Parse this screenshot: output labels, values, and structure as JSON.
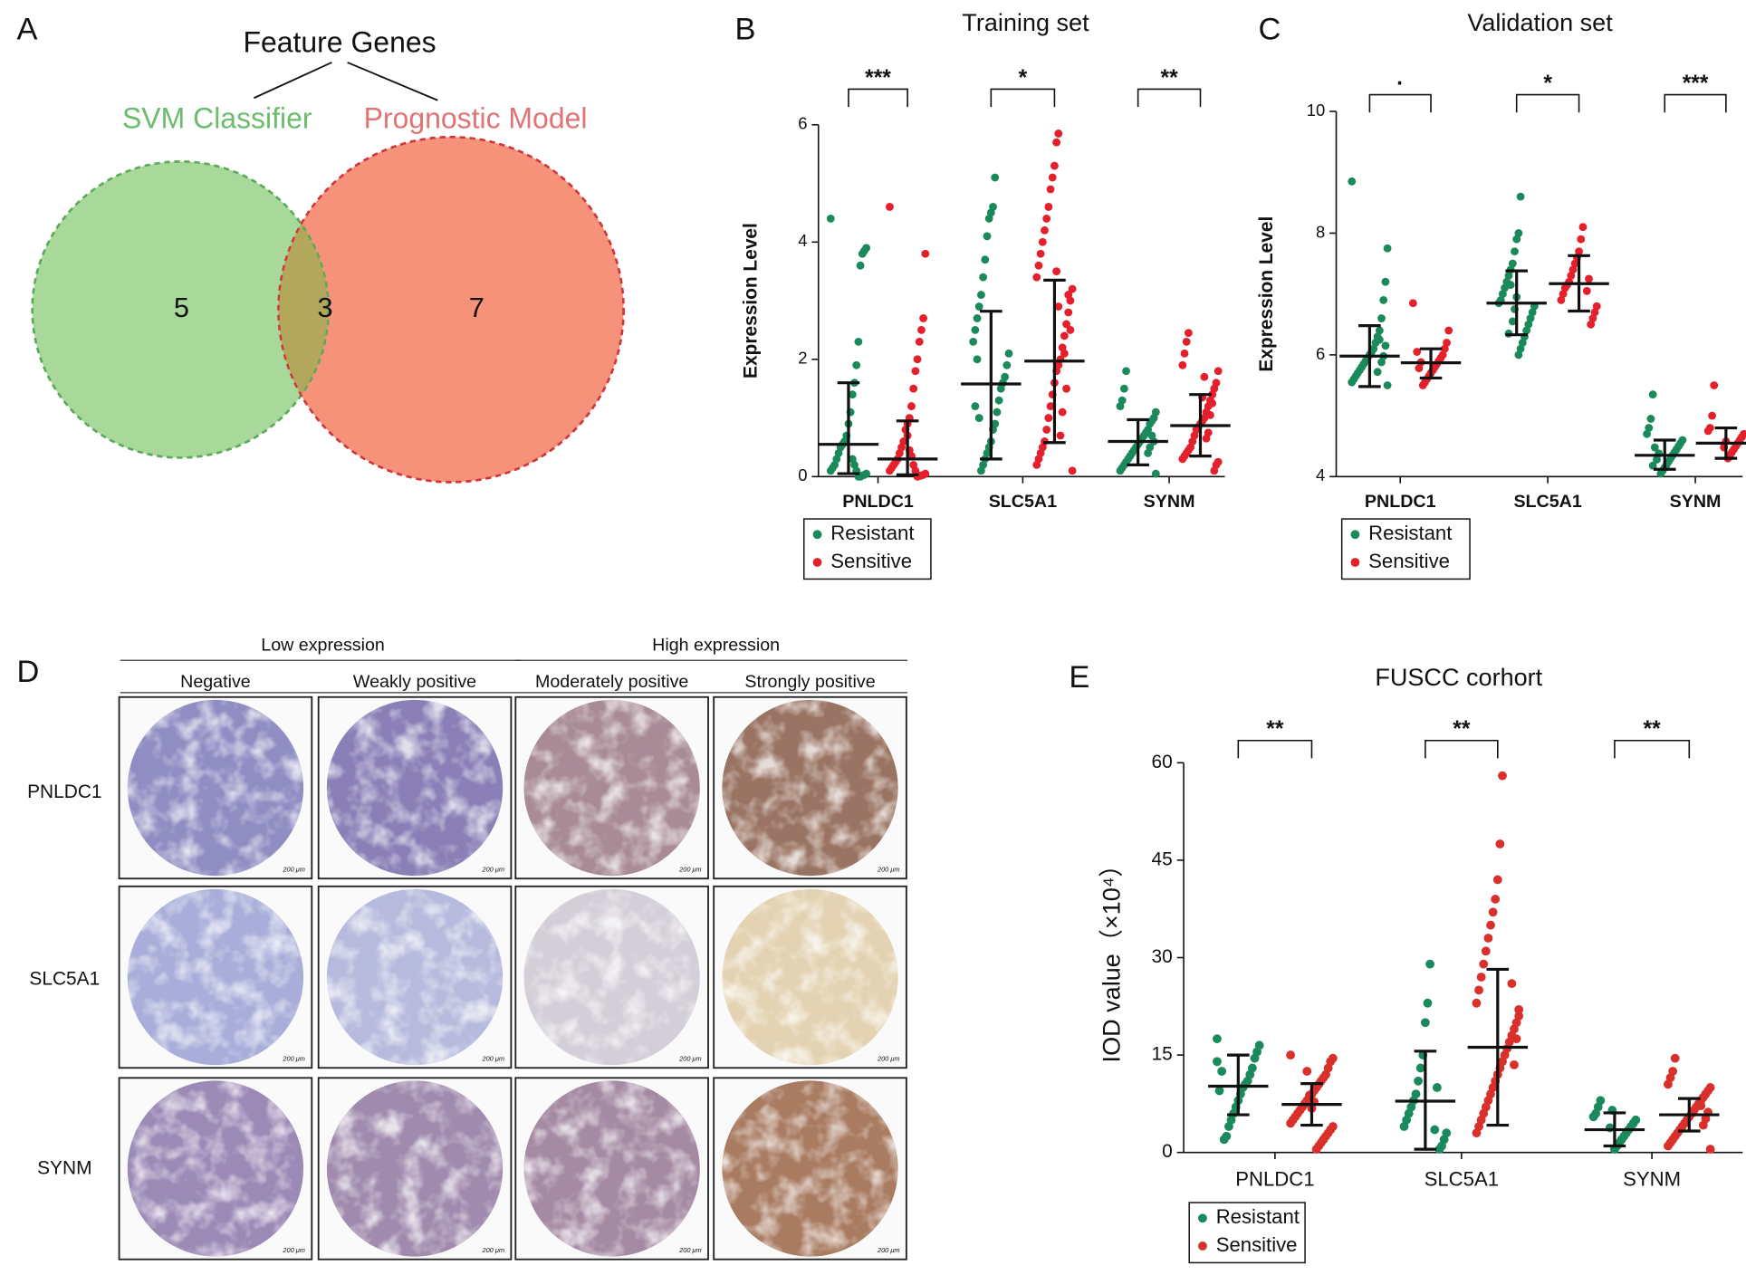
{
  "chart_data": [
    {
      "type": "venn",
      "label": "A",
      "title": "Feature Genes",
      "sets": [
        {
          "name": "SVM Classifier",
          "color": "#a8d99b"
        },
        {
          "name": "Prognostic Model",
          "color": "#f6927a"
        }
      ],
      "overlap_color": "#b3a75c",
      "values": [
        5,
        3,
        7
      ]
    },
    {
      "type": "dotplot",
      "label": "B",
      "title": "Training set",
      "ylabel": "Expression Level",
      "categories": [
        "PNLDC1",
        "SLC5A1",
        "SYNM"
      ],
      "annotations": [
        "***",
        "*",
        "**"
      ],
      "ylim": [
        0,
        6
      ],
      "yticks": [
        0,
        2,
        4,
        6
      ],
      "series": [
        {
          "name": "Resistant",
          "color": "#1b8a5a",
          "values": [
            [
              4.4,
              3.9,
              3.85,
              3.8,
              3.6,
              2.3,
              1.9,
              1.6,
              1.4,
              1.1,
              0.9,
              0.7,
              0.6,
              0.55,
              0.5,
              0.4,
              0.3,
              0.2,
              0.15,
              0.1,
              0.05,
              0.03,
              0.02,
              0.0,
              0.0,
              0.1,
              0.2,
              0.3
            ],
            [
              5.1,
              4.6,
              4.5,
              4.4,
              4.1,
              3.7,
              3.4,
              3.1,
              2.9,
              2.7,
              2.5,
              2.3,
              2.1,
              1.9,
              1.7,
              1.6,
              1.5,
              1.3,
              1.1,
              0.9,
              0.8,
              0.6,
              0.5,
              0.4,
              0.3,
              0.2,
              0.1,
              1.0,
              2.0,
              1.2
            ],
            [
              1.8,
              1.5,
              1.3,
              1.2,
              1.1,
              1.0,
              0.95,
              0.9,
              0.8,
              0.75,
              0.7,
              0.65,
              0.6,
              0.55,
              0.5,
              0.45,
              0.4,
              0.35,
              0.3,
              0.25,
              0.2,
              0.15,
              0.1,
              0.05,
              0.6,
              0.7,
              0.5,
              0.4
            ]
          ],
          "center": [
            0.55,
            1.58,
            0.6
          ],
          "lower": [
            0.05,
            0.3,
            0.2
          ],
          "upper": [
            1.6,
            2.82,
            0.97
          ]
        },
        {
          "name": "Sensitive",
          "color": "#e4202c",
          "values": [
            [
              4.6,
              3.8,
              2.7,
              2.5,
              2.3,
              2.0,
              1.8,
              1.5,
              1.2,
              1.0,
              0.9,
              0.8,
              0.6,
              0.5,
              0.4,
              0.3,
              0.25,
              0.2,
              0.15,
              0.1,
              0.05,
              0.03,
              0.02,
              0.01,
              0.0,
              0.1,
              0.2,
              0.35,
              0.45,
              0.7
            ],
            [
              5.85,
              5.7,
              5.3,
              5.1,
              4.9,
              4.6,
              4.4,
              4.2,
              4.0,
              3.8,
              3.6,
              3.4,
              3.2,
              3.0,
              2.8,
              2.6,
              2.4,
              2.2,
              2.0,
              1.9,
              1.8,
              1.6,
              1.4,
              1.2,
              1.0,
              0.8,
              0.6,
              0.5,
              0.4,
              0.3,
              0.2,
              0.1,
              2.5,
              3.1,
              1.5,
              2.1,
              1.1,
              0.7,
              2.9,
              3.5
            ],
            [
              2.45,
              2.3,
              2.1,
              1.9,
              1.8,
              1.6,
              1.5,
              1.4,
              1.3,
              1.2,
              1.1,
              1.0,
              0.95,
              0.9,
              0.85,
              0.8,
              0.7,
              0.6,
              0.5,
              0.45,
              0.4,
              0.35,
              0.3,
              0.25,
              0.2,
              0.1,
              1.25,
              1.05,
              0.75,
              0.65,
              1.7,
              1.35
            ]
          ],
          "center": [
            0.3,
            1.97,
            0.87
          ],
          "lower": [
            0.03,
            0.58,
            0.35
          ],
          "upper": [
            0.95,
            3.35,
            1.4
          ]
        }
      ]
    },
    {
      "type": "dotplot",
      "label": "C",
      "title": "Validation set",
      "ylabel": "Expression Level",
      "categories": [
        "PNLDC1",
        "SLC5A1",
        "SYNM"
      ],
      "annotations": [
        "·",
        "*",
        "***"
      ],
      "ylim": [
        4,
        10
      ],
      "yticks": [
        4,
        6,
        8,
        10
      ],
      "series": [
        {
          "name": "Resistant",
          "color": "#1b8a5a",
          "values": [
            [
              8.85,
              7.75,
              7.2,
              6.9,
              6.6,
              6.4,
              6.3,
              6.2,
              6.1,
              6.05,
              6.0,
              5.95,
              5.9,
              5.85,
              5.8,
              5.75,
              5.7,
              5.65,
              5.6,
              5.55,
              5.5,
              6.15,
              5.98,
              5.88,
              6.25,
              5.72
            ],
            [
              8.6,
              8.0,
              7.9,
              7.7,
              7.5,
              7.4,
              7.3,
              7.2,
              7.1,
              7.0,
              6.9,
              6.85,
              6.8,
              6.7,
              6.6,
              6.5,
              6.4,
              6.3,
              6.2,
              6.1,
              6.0,
              6.95,
              6.75,
              6.55,
              7.15,
              6.35
            ],
            [
              5.35,
              4.95,
              4.8,
              4.7,
              4.6,
              4.55,
              4.5,
              4.45,
              4.4,
              4.35,
              4.3,
              4.25,
              4.2,
              4.15,
              4.1,
              4.05,
              4.38,
              4.28,
              4.48,
              4.18
            ]
          ],
          "center": [
            5.98,
            6.85,
            4.35
          ],
          "lower": [
            5.48,
            6.33,
            4.12
          ],
          "upper": [
            6.48,
            7.38,
            4.6
          ]
        },
        {
          "name": "Sensitive",
          "color": "#e4202c",
          "values": [
            [
              6.85,
              6.4,
              6.2,
              6.1,
              6.0,
              5.95,
              5.9,
              5.85,
              5.8,
              5.75,
              5.7,
              5.65,
              5.6,
              5.55,
              5.5,
              5.88,
              5.78,
              6.05
            ],
            [
              8.1,
              7.9,
              7.7,
              7.6,
              7.5,
              7.4,
              7.3,
              7.2,
              7.15,
              7.1,
              7.0,
              6.9,
              6.8,
              6.7,
              6.6,
              6.5,
              7.25,
              7.05
            ],
            [
              5.5,
              5.0,
              4.8,
              4.75,
              4.7,
              4.65,
              4.6,
              4.55,
              4.5,
              4.45,
              4.4,
              4.35,
              4.3,
              4.58,
              4.48
            ]
          ],
          "center": [
            5.87,
            7.17,
            4.55
          ],
          "lower": [
            5.62,
            6.72,
            4.3
          ],
          "upper": [
            6.1,
            7.63,
            4.8
          ]
        }
      ]
    },
    {
      "type": "dotplot",
      "label": "E",
      "title": "FUSCC corhort",
      "ylabel": "IOD value（×10⁴）",
      "categories": [
        "PNLDC1",
        "SLC5A1",
        "SYNM"
      ],
      "annotations": [
        "**",
        "**",
        "**"
      ],
      "ylim": [
        0,
        60
      ],
      "yticks": [
        0,
        15,
        30,
        45,
        60
      ],
      "series": [
        {
          "name": "Resistant",
          "color": "#1a8a5c",
          "values": [
            [
              17.5,
              16.5,
              15.5,
              14.5,
              13.0,
              12.0,
              11.0,
              10.5,
              10.0,
              9.0,
              8.0,
              7.0,
              6.0,
              5.0,
              4.0,
              2.5,
              2.0,
              12.5,
              9.5,
              14.0
            ],
            [
              29.0,
              23.0,
              20.0,
              15.0,
              13.0,
              11.0,
              9.0,
              8.0,
              7.0,
              6.0,
              5.0,
              4.0,
              3.0,
              2.0,
              1.0,
              0.5,
              10.0,
              3.5
            ],
            [
              8.0,
              7.0,
              6.0,
              5.5,
              5.0,
              4.5,
              4.0,
              3.5,
              3.0,
              2.5,
              2.0,
              1.5,
              1.0,
              0.5,
              6.5,
              3.8
            ]
          ],
          "center": [
            10.2,
            7.9,
            3.5
          ],
          "lower": [
            5.8,
            0.5,
            1.0
          ],
          "upper": [
            15.0,
            15.6,
            6.1
          ]
        },
        {
          "name": "Sensitive",
          "color": "#d9302c",
          "values": [
            [
              15.0,
              14.5,
              14.0,
              13.0,
              12.0,
              11.5,
              11.0,
              10.5,
              10.0,
              9.5,
              9.0,
              8.5,
              8.0,
              7.5,
              7.0,
              6.5,
              6.0,
              5.5,
              5.0,
              4.5,
              4.0,
              3.5,
              3.0,
              2.5,
              2.0,
              1.5,
              1.0,
              0.5,
              7.8,
              6.8,
              8.8,
              12.5
            ],
            [
              58.0,
              47.5,
              42.0,
              39.0,
              37.0,
              35.0,
              33.0,
              31.0,
              29.0,
              27.0,
              25.0,
              23.0,
              21.0,
              20.0,
              19.0,
              18.0,
              17.0,
              16.0,
              15.0,
              14.0,
              13.0,
              12.0,
              11.0,
              10.0,
              9.0,
              8.0,
              7.0,
              6.0,
              5.0,
              4.0,
              3.0,
              22.0,
              17.5,
              13.5,
              26.0
            ],
            [
              14.5,
              12.5,
              11.5,
              10.5,
              10.0,
              9.5,
              9.0,
              8.5,
              8.0,
              7.5,
              7.0,
              6.5,
              6.0,
              5.5,
              5.0,
              4.5,
              4.0,
              3.5,
              3.0,
              2.5,
              2.0,
              1.5,
              1.0,
              0.5,
              6.2,
              5.2,
              4.2,
              7.2
            ]
          ],
          "center": [
            7.4,
            16.2,
            5.8
          ],
          "lower": [
            4.2,
            4.2,
            3.3
          ],
          "upper": [
            10.6,
            28.2,
            8.3
          ]
        }
      ]
    }
  ],
  "ihc_panel": {
    "label": "D",
    "groups": [
      "Low expression",
      "High expression"
    ],
    "columns": [
      "Negative",
      "Weakly positive",
      "Moderately positive",
      "Strongly positive"
    ],
    "rows": [
      "PNLDC1",
      "SLC5A1",
      "SYNM"
    ],
    "scale_label": "200 μm"
  }
}
